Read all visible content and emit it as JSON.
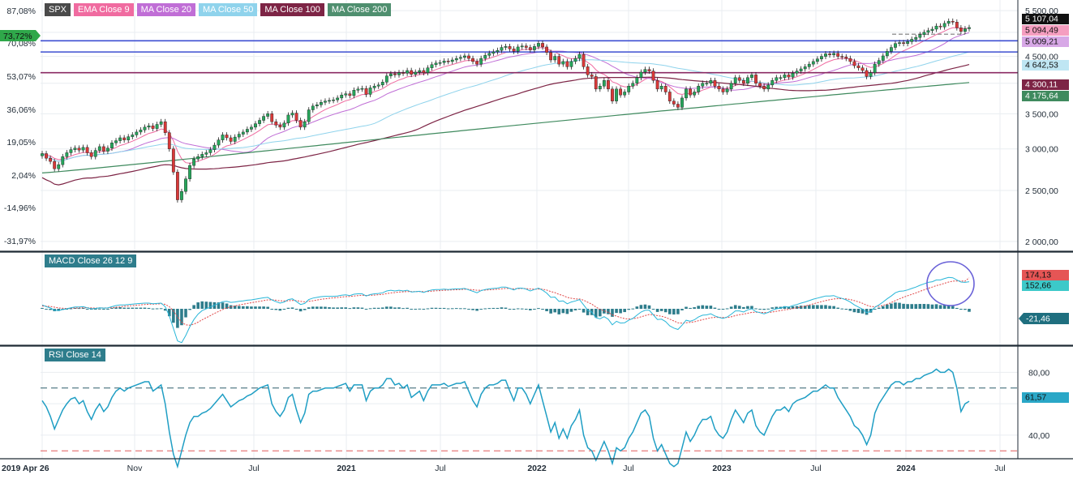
{
  "colors": {
    "background": "#ffffff",
    "grid": "#e9edf1",
    "panel_border": "#1f2a35",
    "candle_up": "#26a65b",
    "candle_down": "#d93838",
    "ema9": "#f06ba0",
    "ma20": "#c06ed6",
    "ma50": "#8fd3ec",
    "ma100": "#7d2445",
    "ma200": "#3f8a5e",
    "support_line": "#3d4fd1",
    "support_line_bottom": "#8a2a63",
    "macd_line": "#29b6d8",
    "macd_signal": "#e04646",
    "macd_hist": "#2e7d8c",
    "rsi_line": "#1f9ec4",
    "rsi_upper": "#2e5f6b",
    "rsi_lower": "#e05a5a",
    "highlight_circle": "#6a62d8"
  },
  "price_panel": {
    "legend": [
      {
        "label": "SPX",
        "color": "#4a4a4a"
      },
      {
        "label": "EMA Close 9",
        "color": "#f06ba0"
      },
      {
        "label": "MA Close 20",
        "color": "#c06ed6"
      },
      {
        "label": "MA Close 50",
        "color": "#8fd3ec"
      },
      {
        "label": "MA Close 100",
        "color": "#7d2445"
      },
      {
        "label": "MA Close 200",
        "color": "#4f8f6f"
      }
    ],
    "left_axis_labels": [
      "87,08%",
      "70,08%",
      "53,07%",
      "36,06%",
      "19,05%",
      "2,04%",
      "-14,96%",
      "-31,97%"
    ],
    "right_axis_labels": [
      "5 500,00",
      "5 000,00",
      "4 500,00",
      "4 000,00",
      "3 500,00",
      "3 000,00",
      "2 500,00",
      "2 000,00"
    ],
    "current_pct_badge": {
      "label": "73,72%",
      "color": "#2fa84a"
    },
    "price_badges": [
      {
        "label": "5 107,04",
        "bg": "#111111",
        "fg": "#ffffff"
      },
      {
        "label": "5 094,49",
        "bg": "#f59ec0",
        "fg": "#111111"
      },
      {
        "label": "5 009,21",
        "bg": "#d7a8e6",
        "fg": "#111111"
      },
      {
        "label": "4 642,53",
        "bg": "#bfe6f3",
        "fg": "#111111"
      },
      {
        "label": "4 300,11",
        "bg": "#7d2445",
        "fg": "#ffffff"
      },
      {
        "label": "4 175,64",
        "bg": "#3f8a5e",
        "fg": "#ffffff"
      }
    ]
  },
  "macd_panel": {
    "legend": "MACD Close 26 12 9",
    "badges": [
      {
        "label": "174,13",
        "bg": "#e55555",
        "fg": "#111111"
      },
      {
        "label": "152,66",
        "bg": "#3cc9c9",
        "fg": "#111111"
      },
      {
        "label": "-21,46",
        "bg": "#1f6f7f",
        "fg": "#ffffff"
      }
    ]
  },
  "rsi_panel": {
    "legend": "RSI Close 14",
    "right_axis_labels": [
      "80,00",
      "40,00"
    ],
    "badge": {
      "label": "61,57",
      "bg": "#2aa7c7",
      "fg": "#111111"
    }
  },
  "x_axis": {
    "labels": [
      "2019 Apr 26",
      "Nov",
      "Jul",
      "2021",
      "Jul",
      "2022",
      "Jul",
      "2023",
      "Jul",
      "2024",
      "Jul"
    ]
  },
  "chart_data": {
    "type": "candlestick",
    "interval": "weekly",
    "y_scale": "log",
    "ylim": [
      1950,
      5600
    ],
    "price_series": [
      2939,
      2880,
      2840,
      2750,
      2800,
      2900,
      2950,
      2990,
      3010,
      2985,
      3020,
      2950,
      2900,
      2980,
      3030,
      2970,
      3010,
      3080,
      3110,
      3150,
      3120,
      3165,
      3190,
      3230,
      3260,
      3300,
      3320,
      3280,
      3340,
      3380,
      3220,
      3000,
      2710,
      2400,
      2490,
      2630,
      2790,
      2870,
      2900,
      2930,
      2950,
      2990,
      3050,
      3120,
      3190,
      3150,
      3100,
      3160,
      3200,
      3230,
      3270,
      3300,
      3350,
      3400,
      3460,
      3500,
      3380,
      3330,
      3300,
      3360,
      3480,
      3510,
      3400,
      3300,
      3380,
      3560,
      3620,
      3640,
      3680,
      3700,
      3710,
      3720,
      3750,
      3800,
      3820,
      3790,
      3880,
      3900,
      3910,
      3810,
      3920,
      3950,
      3970,
      4020,
      4130,
      4170,
      4150,
      4190,
      4180,
      4230,
      4160,
      4200,
      4230,
      4190,
      4280,
      4340,
      4370,
      4380,
      4410,
      4400,
      4430,
      4460,
      4480,
      4510,
      4460,
      4400,
      4350,
      4460,
      4520,
      4560,
      4590,
      4620,
      4680,
      4700,
      4650,
      4600,
      4690,
      4710,
      4680,
      4630,
      4700,
      4766,
      4690,
      4580,
      4430,
      4500,
      4350,
      4400,
      4300,
      4400,
      4460,
      4540,
      4300,
      4150,
      4120,
      3900,
      3950,
      4050,
      3900,
      3700,
      3900,
      3800,
      3850,
      3950,
      4000,
      4100,
      4200,
      4250,
      4220,
      4050,
      3900,
      3950,
      3850,
      3700,
      3650,
      3600,
      3750,
      3900,
      3800,
      3850,
      3950,
      4000,
      4000,
      4050,
      3950,
      3900,
      3850,
      3900,
      4000,
      4100,
      4050,
      4000,
      4100,
      4150,
      4000,
      3950,
      3900,
      3970,
      4050,
      4100,
      4100,
      4150,
      4110,
      4180,
      4220,
      4260,
      4300,
      4350,
      4400,
      4450,
      4500,
      4550,
      4530,
      4560,
      4500,
      4490,
      4460,
      4400,
      4320,
      4280,
      4230,
      4120,
      4190,
      4350,
      4420,
      4510,
      4600,
      4680,
      4760,
      4780,
      4760,
      4800,
      4850,
      4890,
      4950,
      5000,
      5040,
      5070,
      5140,
      5120,
      5200,
      5250,
      5230,
      5100,
      5020,
      5080,
      5107
    ],
    "indicators": [
      "EMA Close 9",
      "MA Close 20",
      "MA Close 50",
      "MA Close 100",
      "MA Close 200"
    ],
    "horizontal_levels": [
      4818,
      4588,
      4189
    ],
    "dashed_level": 4960,
    "macd_fast": [
      22,
      12,
      5,
      -8,
      -10,
      -4,
      0,
      6,
      10,
      10,
      12,
      6,
      0,
      2,
      6,
      4,
      5,
      12,
      18,
      22,
      22,
      24,
      26,
      28,
      30,
      32,
      32,
      28,
      30,
      32,
      12,
      -40,
      -110,
      -180,
      -190,
      -150,
      -100,
      -60,
      -30,
      -10,
      0,
      10,
      20,
      30,
      40,
      42,
      36,
      38,
      42,
      44,
      48,
      50,
      54,
      58,
      62,
      64,
      50,
      40,
      32,
      38,
      52,
      56,
      40,
      24,
      30,
      52,
      60,
      64,
      68,
      70,
      70,
      70,
      72,
      76,
      78,
      74,
      82,
      84,
      84,
      72,
      80,
      84,
      86,
      90,
      100,
      104,
      100,
      104,
      100,
      104,
      94,
      96,
      98,
      92,
      100,
      106,
      108,
      108,
      110,
      108,
      110,
      112,
      112,
      114,
      106,
      98,
      90,
      102,
      108,
      112,
      114,
      116,
      122,
      122,
      114,
      106,
      116,
      116,
      110,
      100,
      108,
      116,
      104,
      88,
      64,
      66,
      42,
      44,
      28,
      38,
      44,
      52,
      22,
      -8,
      -18,
      -50,
      -56,
      -44,
      -58,
      -90,
      -70,
      -80,
      -78,
      -64,
      -54,
      -36,
      -18,
      -8,
      -8,
      -34,
      -60,
      -58,
      -72,
      -96,
      -108,
      -116,
      -92,
      -64,
      -70,
      -62,
      -46,
      -36,
      -34,
      -28,
      -40,
      -48,
      -54,
      -46,
      -30,
      -12,
      -12,
      -18,
      -6,
      0,
      -16,
      -22,
      -28,
      -20,
      -8,
      0,
      4,
      12,
      10,
      18,
      24,
      32,
      38,
      46,
      54,
      60,
      66,
      72,
      72,
      74,
      64,
      58,
      50,
      38,
      22,
      10,
      -2,
      -22,
      -14,
      8,
      22,
      38,
      56,
      72,
      90,
      98,
      100,
      106,
      114,
      122,
      132,
      140,
      148,
      152,
      162,
      162,
      170,
      176,
      174,
      162,
      150,
      148,
      152
    ],
    "macd_signal": [
      16,
      15,
      13,
      9,
      5,
      3,
      2,
      3,
      4,
      5,
      6,
      6,
      5,
      4,
      5,
      5,
      5,
      6,
      9,
      11,
      14,
      16,
      18,
      20,
      22,
      24,
      26,
      26,
      27,
      28,
      25,
      12,
      -12,
      -46,
      -75,
      -90,
      -92,
      -86,
      -75,
      -62,
      -50,
      -38,
      -26,
      -15,
      -4,
      5,
      11,
      16,
      22,
      26,
      30,
      34,
      38,
      42,
      46,
      50,
      50,
      48,
      45,
      44,
      45,
      47,
      46,
      42,
      39,
      42,
      45,
      49,
      53,
      56,
      59,
      61,
      63,
      66,
      68,
      69,
      72,
      74,
      76,
      75,
      76,
      77,
      79,
      81,
      85,
      89,
      91,
      94,
      95,
      97,
      97,
      97,
      97,
      96,
      97,
      99,
      101,
      102,
      104,
      105,
      106,
      107,
      108,
      110,
      109,
      107,
      104,
      104,
      105,
      107,
      108,
      110,
      112,
      114,
      114,
      112,
      113,
      114,
      113,
      111,
      110,
      111,
      110,
      105,
      97,
      91,
      81,
      74,
      64,
      59,
      55,
      55,
      48,
      37,
      26,
      10,
      -3,
      -11,
      -20,
      -34,
      -41,
      -49,
      -55,
      -57,
      -56,
      -52,
      -45,
      -38,
      -32,
      -33,
      -38,
      -42,
      -48,
      -58,
      -68,
      -78,
      -81,
      -78,
      -76,
      -73,
      -67,
      -61,
      -56,
      -50,
      -48,
      -48,
      -49,
      -49,
      -45,
      -38,
      -33,
      -30,
      -25,
      -20,
      -19,
      -20,
      -21,
      -21,
      -18,
      -14,
      -10,
      -6,
      -3,
      1,
      5,
      10,
      16,
      21,
      28,
      34,
      40,
      46,
      51,
      55,
      57,
      57,
      56,
      52,
      46,
      39,
      31,
      20,
      13,
      12,
      14,
      19,
      26,
      35,
      46,
      56,
      65,
      73,
      81,
      89,
      98,
      106,
      115,
      122,
      130,
      136,
      143,
      150,
      155,
      156,
      156,
      155,
      174
    ],
    "macd_histogram": [
      6,
      -3,
      -8,
      -17,
      -15,
      -7,
      -2,
      3,
      6,
      5,
      6,
      0,
      -5,
      -2,
      1,
      -1,
      0,
      6,
      9,
      11,
      8,
      8,
      8,
      8,
      8,
      8,
      6,
      2,
      3,
      4,
      -13,
      -52,
      -98,
      -134,
      -115,
      -60,
      -8,
      26,
      45,
      52,
      50,
      48,
      46,
      45,
      44,
      37,
      25,
      22,
      20,
      18,
      18,
      16,
      16,
      16,
      16,
      14,
      0,
      -8,
      -13,
      -6,
      7,
      9,
      -6,
      -18,
      -9,
      10,
      15,
      15,
      15,
      14,
      11,
      9,
      9,
      10,
      10,
      5,
      10,
      10,
      8,
      -3,
      4,
      7,
      7,
      9,
      15,
      15,
      9,
      10,
      5,
      7,
      -3,
      -1,
      1,
      -4,
      3,
      7,
      7,
      6,
      6,
      3,
      4,
      5,
      4,
      4,
      -3,
      -9,
      -14,
      -2,
      3,
      5,
      6,
      6,
      10,
      8,
      0,
      -6,
      3,
      2,
      -3,
      -11,
      -2,
      5,
      -6,
      -17,
      -33,
      -25,
      -39,
      -30,
      -36,
      -21,
      -11,
      -3,
      -26,
      -45,
      -44,
      -60,
      -53,
      -33,
      -38,
      -56,
      -29,
      -31,
      -23,
      -7,
      2,
      16,
      27,
      30,
      24,
      -1,
      -22,
      -16,
      -24,
      -38,
      -40,
      -38,
      -11,
      14,
      6,
      11,
      21,
      25,
      22,
      22,
      8,
      0,
      -5,
      3,
      15,
      26,
      21,
      12,
      19,
      20,
      3,
      -2,
      -7,
      1,
      10,
      14,
      14,
      18,
      13,
      17,
      19,
      22,
      22,
      25,
      26,
      26,
      26,
      26,
      21,
      19,
      8,
      2,
      -6,
      -14,
      -24,
      -29,
      -33,
      -42,
      -27,
      -4,
      8,
      19,
      30,
      37,
      44,
      42,
      35,
      33,
      33,
      33,
      34,
      34,
      33,
      30,
      32,
      26,
      27,
      26,
      19,
      6,
      -6,
      -7,
      -21
    ],
    "rsi": [
      62,
      58,
      52,
      44,
      50,
      56,
      60,
      63,
      64,
      60,
      62,
      55,
      50,
      56,
      60,
      55,
      58,
      64,
      68,
      70,
      68,
      70,
      71,
      72,
      73,
      74,
      74,
      68,
      70,
      72,
      60,
      42,
      28,
      20,
      30,
      40,
      48,
      52,
      52,
      54,
      55,
      57,
      60,
      63,
      66,
      62,
      58,
      60,
      62,
      63,
      65,
      66,
      68,
      70,
      71,
      72,
      60,
      55,
      52,
      56,
      64,
      66,
      56,
      48,
      54,
      66,
      68,
      68,
      69,
      70,
      70,
      70,
      71,
      72,
      73,
      68,
      72,
      72,
      72,
      62,
      68,
      70,
      70,
      72,
      76,
      76,
      72,
      73,
      70,
      72,
      64,
      66,
      68,
      62,
      68,
      72,
      72,
      72,
      73,
      71,
      72,
      73,
      73,
      74,
      68,
      62,
      58,
      66,
      70,
      72,
      72,
      73,
      75,
      75,
      68,
      62,
      70,
      70,
      66,
      60,
      66,
      72,
      62,
      52,
      42,
      48,
      38,
      44,
      38,
      46,
      50,
      56,
      40,
      32,
      30,
      24,
      30,
      36,
      30,
      22,
      32,
      30,
      32,
      38,
      42,
      48,
      54,
      56,
      52,
      38,
      30,
      34,
      28,
      22,
      20,
      22,
      32,
      42,
      36,
      40,
      46,
      50,
      50,
      52,
      44,
      40,
      38,
      42,
      50,
      56,
      52,
      48,
      54,
      56,
      46,
      42,
      40,
      46,
      52,
      56,
      56,
      58,
      55,
      60,
      62,
      63,
      64,
      66,
      68,
      68,
      70,
      72,
      70,
      70,
      64,
      60,
      56,
      52,
      46,
      44,
      40,
      34,
      40,
      54,
      60,
      64,
      68,
      72,
      74,
      74,
      72,
      74,
      74,
      76,
      76,
      78,
      79,
      80,
      82,
      80,
      80,
      82,
      80,
      70,
      55,
      60,
      61.57
    ],
    "rsi_levels": [
      70,
      30
    ]
  }
}
